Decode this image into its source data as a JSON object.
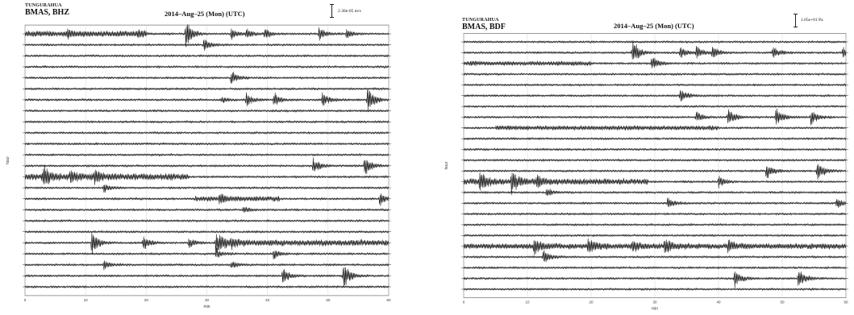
{
  "chart_data": [
    {
      "type": "line",
      "volcano": "TUNGURAHUA",
      "station": "BMAS, BHZ",
      "title": "2014–Aug–25 (Mon) (UTC)",
      "scale_label": "2.36e-05 m/s",
      "xlabel": "min",
      "ylabel": "hour",
      "xlim": [
        0,
        60
      ],
      "x_ticks": [
        "0",
        "10",
        "20",
        "30",
        "40",
        "50",
        "60"
      ],
      "row_count": 24,
      "events": [
        {
          "row": 0,
          "minute": 26.5,
          "amp": 3.0
        },
        {
          "row": 0,
          "minute": 34,
          "amp": 1.2
        },
        {
          "row": 0,
          "minute": 36.5,
          "amp": 1.0
        },
        {
          "row": 0,
          "minute": 39.5,
          "amp": 1.0
        },
        {
          "row": 0,
          "minute": 48.5,
          "amp": 1.3
        },
        {
          "row": 0,
          "minute": 53,
          "amp": 0.9
        },
        {
          "row": 0,
          "minute": 7,
          "amp": 0.6
        },
        {
          "row": 0,
          "minute": 18.5,
          "amp": 0.6
        },
        {
          "row": 1,
          "minute": 29.5,
          "amp": 1.4
        },
        {
          "row": 4,
          "minute": 34,
          "amp": 1.4
        },
        {
          "row": 6,
          "minute": 36.5,
          "amp": 1.3
        },
        {
          "row": 6,
          "minute": 41,
          "amp": 1.6
        },
        {
          "row": 6,
          "minute": 49,
          "amp": 1.6
        },
        {
          "row": 6,
          "minute": 56.5,
          "amp": 3.0
        },
        {
          "row": 6,
          "minute": 32.5,
          "amp": 0.5
        },
        {
          "row": 12,
          "minute": 47.5,
          "amp": 1.7
        },
        {
          "row": 12,
          "minute": 56,
          "amp": 2.2
        },
        {
          "row": 13,
          "minute": 3,
          "amp": 1.9
        },
        {
          "row": 13,
          "minute": 7.5,
          "amp": 1.4
        },
        {
          "row": 13,
          "minute": 11.5,
          "amp": 1.4
        },
        {
          "row": 14,
          "minute": 13,
          "amp": 0.8
        },
        {
          "row": 15,
          "minute": 32,
          "amp": 1.0
        },
        {
          "row": 15,
          "minute": 58.5,
          "amp": 1.3
        },
        {
          "row": 16,
          "minute": 36,
          "amp": 0.6
        },
        {
          "row": 19,
          "minute": 11,
          "amp": 2.6
        },
        {
          "row": 19,
          "minute": 19.5,
          "amp": 1.5
        },
        {
          "row": 19,
          "minute": 27,
          "amp": 1.0
        },
        {
          "row": 19,
          "minute": 31.5,
          "amp": 2.6
        },
        {
          "row": 19,
          "minute": 34,
          "amp": 0.8
        },
        {
          "row": 20,
          "minute": 31.5,
          "amp": 1.0
        },
        {
          "row": 20,
          "minute": 41,
          "amp": 0.9
        },
        {
          "row": 21,
          "minute": 13,
          "amp": 1.1
        },
        {
          "row": 21,
          "minute": 34,
          "amp": 0.7
        },
        {
          "row": 22,
          "minute": 42.5,
          "amp": 1.6
        },
        {
          "row": 22,
          "minute": 52.5,
          "amp": 2.8
        }
      ],
      "bursts": [
        {
          "row": 13,
          "from": 0,
          "to": 27,
          "amp": 0.45
        },
        {
          "row": 19,
          "from": 32,
          "to": 60,
          "amp": 0.4
        },
        {
          "row": 0,
          "from": 0,
          "to": 20,
          "amp": 0.35
        },
        {
          "row": 15,
          "from": 28,
          "to": 42,
          "amp": 0.3
        }
      ]
    },
    {
      "type": "line",
      "volcano": "TUNGURAHUA",
      "station": "BMAS, BDF",
      "title": "2014–Aug–25 (Mon) (UTC)",
      "scale_label": "1.05e+01 Pa",
      "xlabel": "min",
      "ylabel": "hour",
      "xlim": [
        0,
        60
      ],
      "x_ticks": [
        "0",
        "10",
        "20",
        "30",
        "40",
        "50",
        "60"
      ],
      "row_count": 24,
      "events": [
        {
          "row": 1,
          "minute": 26.5,
          "amp": 2.6
        },
        {
          "row": 1,
          "minute": 34,
          "amp": 1.2
        },
        {
          "row": 1,
          "minute": 36.5,
          "amp": 1.2
        },
        {
          "row": 1,
          "minute": 39,
          "amp": 1.2
        },
        {
          "row": 1,
          "minute": 48.5,
          "amp": 1.2
        },
        {
          "row": 1,
          "minute": 59.5,
          "amp": 1.0
        },
        {
          "row": 2,
          "minute": 29.5,
          "amp": 1.6
        },
        {
          "row": 5,
          "minute": 34,
          "amp": 1.4
        },
        {
          "row": 7,
          "minute": 36.5,
          "amp": 1.0
        },
        {
          "row": 7,
          "minute": 41.5,
          "amp": 1.7
        },
        {
          "row": 7,
          "minute": 49,
          "amp": 1.7
        },
        {
          "row": 7,
          "minute": 54.5,
          "amp": 1.5
        },
        {
          "row": 12,
          "minute": 47.5,
          "amp": 1.6
        },
        {
          "row": 12,
          "minute": 55.5,
          "amp": 2.0
        },
        {
          "row": 13,
          "minute": 2.5,
          "amp": 2.0
        },
        {
          "row": 13,
          "minute": 7.5,
          "amp": 2.2
        },
        {
          "row": 13,
          "minute": 11.5,
          "amp": 1.2
        },
        {
          "row": 13,
          "minute": 40,
          "amp": 1.2
        },
        {
          "row": 14,
          "minute": 13,
          "amp": 0.8
        },
        {
          "row": 15,
          "minute": 32,
          "amp": 1.0
        },
        {
          "row": 15,
          "minute": 58.5,
          "amp": 1.0
        },
        {
          "row": 19,
          "minute": 11,
          "amp": 1.4
        },
        {
          "row": 19,
          "minute": 19.5,
          "amp": 1.6
        },
        {
          "row": 19,
          "minute": 26.5,
          "amp": 1.0
        },
        {
          "row": 19,
          "minute": 31.5,
          "amp": 1.3
        },
        {
          "row": 19,
          "minute": 41.5,
          "amp": 1.1
        },
        {
          "row": 20,
          "minute": 12.5,
          "amp": 1.4
        },
        {
          "row": 22,
          "minute": 42.5,
          "amp": 1.8
        },
        {
          "row": 22,
          "minute": 52.5,
          "amp": 2.2
        }
      ],
      "bursts": [
        {
          "row": 13,
          "from": 0,
          "to": 29,
          "amp": 0.4
        },
        {
          "row": 19,
          "from": 0,
          "to": 60,
          "amp": 0.35
        },
        {
          "row": 8,
          "from": 5,
          "to": 40,
          "amp": 0.25
        },
        {
          "row": 2,
          "from": 0,
          "to": 20,
          "amp": 0.25
        }
      ]
    }
  ]
}
